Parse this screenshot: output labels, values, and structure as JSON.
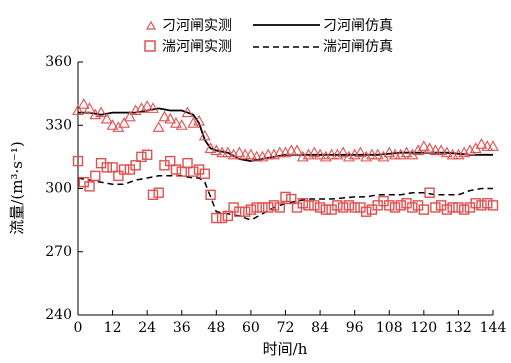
{
  "chart_data": {
    "type": "line",
    "title": "",
    "xlabel": "时间/h",
    "ylabel": "流量/(m³·s⁻¹)",
    "xlim": [
      0,
      144
    ],
    "ylim": [
      240,
      360
    ],
    "xticks": [
      0,
      12,
      24,
      36,
      48,
      60,
      72,
      84,
      96,
      108,
      120,
      132,
      144
    ],
    "yticks": [
      240,
      270,
      300,
      330,
      360
    ],
    "xtick_labels": [
      "0",
      "12",
      "24",
      "36",
      "48",
      "60",
      "72",
      "84",
      "96",
      "108",
      "120",
      "132",
      "144"
    ],
    "ytick_labels": [
      "240",
      "270",
      "300",
      "330",
      "360"
    ],
    "grid": false,
    "legend_position": "top-center",
    "series": [
      {
        "name": "刁河闸实测",
        "kind": "scatter",
        "marker": "triangle",
        "color": "#e05050",
        "x": [
          0,
          2,
          4,
          6,
          8,
          10,
          12,
          14,
          16,
          18,
          20,
          22,
          24,
          26,
          28,
          30,
          32,
          34,
          36,
          38,
          40,
          42,
          44,
          46,
          48,
          50,
          52,
          54,
          56,
          58,
          60,
          62,
          64,
          66,
          68,
          70,
          72,
          74,
          76,
          78,
          80,
          82,
          84,
          86,
          88,
          90,
          92,
          94,
          96,
          98,
          100,
          102,
          104,
          106,
          108,
          110,
          112,
          114,
          116,
          118,
          120,
          122,
          124,
          126,
          128,
          130,
          132,
          134,
          136,
          138,
          140,
          142,
          144
        ],
        "y": [
          337,
          340,
          338,
          335,
          336,
          333,
          330,
          329,
          331,
          334,
          337,
          338,
          339,
          338,
          329,
          334,
          333,
          331,
          330,
          336,
          331,
          332,
          325,
          319,
          318,
          317,
          317,
          316,
          317,
          316,
          316,
          315,
          315,
          316,
          316,
          317,
          317,
          318,
          318,
          315,
          316,
          317,
          316,
          315,
          316,
          316,
          317,
          315,
          316,
          317,
          315,
          316,
          316,
          315,
          317,
          316,
          316,
          317,
          316,
          318,
          320,
          319,
          318,
          318,
          317,
          316,
          316,
          317,
          318,
          319,
          321,
          320,
          320
        ]
      },
      {
        "name": "刁河闸仿真",
        "kind": "line",
        "dash": "solid",
        "color": "#000000",
        "x": [
          0,
          4,
          8,
          12,
          16,
          20,
          24,
          28,
          32,
          36,
          40,
          42,
          44,
          46,
          48,
          52,
          56,
          60,
          64,
          68,
          72,
          80,
          88,
          96,
          104,
          112,
          120,
          128,
          136,
          144
        ],
        "y": [
          336,
          336,
          335,
          336,
          336,
          336,
          337,
          338,
          337,
          337,
          335,
          331,
          323,
          319,
          318,
          317,
          314,
          313,
          314,
          315,
          316,
          316,
          316,
          316,
          316,
          317,
          317,
          317,
          316,
          316
        ]
      },
      {
        "name": "湍河闸实测",
        "kind": "scatter",
        "marker": "square",
        "color": "#e05050",
        "x": [
          0,
          2,
          4,
          6,
          8,
          10,
          12,
          14,
          16,
          18,
          20,
          22,
          24,
          26,
          28,
          30,
          32,
          34,
          36,
          38,
          40,
          42,
          44,
          46,
          48,
          50,
          52,
          54,
          56,
          58,
          60,
          62,
          64,
          66,
          68,
          70,
          72,
          74,
          76,
          78,
          80,
          82,
          84,
          86,
          88,
          90,
          92,
          94,
          96,
          98,
          100,
          102,
          104,
          106,
          108,
          110,
          112,
          114,
          116,
          118,
          120,
          122,
          124,
          126,
          128,
          130,
          132,
          134,
          136,
          138,
          140,
          142,
          144
        ],
        "y": [
          313,
          303,
          301,
          306,
          312,
          310,
          310,
          306,
          309,
          309,
          311,
          315,
          316,
          297,
          298,
          311,
          313,
          309,
          308,
          312,
          308,
          309,
          307,
          297,
          286,
          286,
          287,
          291,
          289,
          289,
          290,
          291,
          291,
          291,
          292,
          291,
          296,
          295,
          291,
          293,
          292,
          292,
          291,
          290,
          290,
          292,
          291,
          292,
          291,
          291,
          289,
          290,
          292,
          294,
          292,
          291,
          292,
          293,
          291,
          292,
          290,
          298,
          291,
          292,
          290,
          291,
          291,
          290,
          291,
          293,
          292,
          293,
          292
        ]
      },
      {
        "name": "湍河闸仿真",
        "kind": "line",
        "dash": "dashed",
        "color": "#000000",
        "x": [
          0,
          4,
          8,
          12,
          16,
          20,
          24,
          28,
          32,
          36,
          40,
          42,
          44,
          46,
          48,
          52,
          56,
          60,
          64,
          68,
          72,
          80,
          88,
          96,
          100,
          104,
          108,
          112,
          116,
          120,
          124,
          128,
          132,
          136,
          140,
          144
        ],
        "y": [
          305,
          304,
          303,
          302,
          302,
          304,
          305,
          306,
          306,
          306,
          305,
          305,
          303,
          296,
          289,
          288,
          287,
          285,
          288,
          291,
          293,
          295,
          295,
          296,
          296,
          297,
          297,
          297,
          298,
          298,
          297,
          297,
          297,
          299,
          300,
          300
        ]
      }
    ]
  }
}
